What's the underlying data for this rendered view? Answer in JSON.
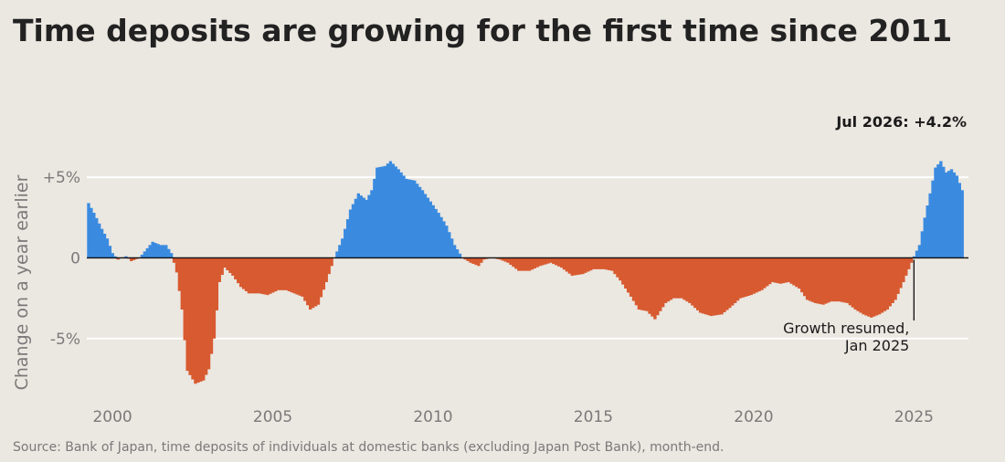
{
  "title": "Time deposits are growing for the first time since 2011",
  "source": "Source: Bank of Japan, time deposits of individuals at domestic banks (excluding Japan Post Bank), month-end.",
  "colors": {
    "background": "#ebe7e1",
    "positive": "#3a8be0",
    "negative": "#d85a30",
    "gridline": "#ffffff",
    "zero_line": "#111111"
  },
  "chart_data": {
    "type": "bar",
    "title": "Time deposits are growing for the first time since 2011",
    "ylabel": "Change on a year earlier",
    "ylim": [
      -9.2,
      7.5
    ],
    "xlim": [
      1999.2,
      2026.7
    ],
    "grid": "horizontal",
    "yticks": [
      {
        "value": 5,
        "label": "+5%"
      },
      {
        "value": 0,
        "label": "0"
      },
      {
        "value": -5,
        "label": "-5%"
      }
    ],
    "xticks": [
      {
        "value": 2000,
        "label": "2000"
      },
      {
        "value": 2005,
        "label": "2005"
      },
      {
        "value": 2010,
        "label": "2010"
      },
      {
        "value": 2015,
        "label": "2015"
      },
      {
        "value": 2020,
        "label": "2020"
      },
      {
        "value": 2025,
        "label": "2025"
      }
    ],
    "frequency": "monthly",
    "series_start": "1999-04",
    "series_end": "2026-07",
    "annotations": [
      {
        "date": "2026-07",
        "text": "Jul 2026: +4.2%"
      },
      {
        "date": "2025-01",
        "lines": [
          "Growth resumed,",
          "Jan 2025"
        ]
      }
    ],
    "anchors": [
      [
        "1999-04",
        3.4
      ],
      [
        "1999-06",
        2.8
      ],
      [
        "1999-09",
        1.8
      ],
      [
        "1999-11",
        1.2
      ],
      [
        "2000-01",
        0.3
      ],
      [
        "2000-03",
        -0.1
      ],
      [
        "2000-06",
        0.1
      ],
      [
        "2000-08",
        -0.2
      ],
      [
        "2000-11",
        0.0
      ],
      [
        "2001-02",
        0.6
      ],
      [
        "2001-04",
        1.0
      ],
      [
        "2001-07",
        0.8
      ],
      [
        "2001-09",
        0.8
      ],
      [
        "2001-11",
        0.3
      ],
      [
        "2002-01",
        -0.9
      ],
      [
        "2002-03",
        -3.2
      ],
      [
        "2002-05",
        -7.0
      ],
      [
        "2002-08",
        -7.8
      ],
      [
        "2002-11",
        -7.6
      ],
      [
        "2003-01",
        -6.9
      ],
      [
        "2003-03",
        -5.0
      ],
      [
        "2003-05",
        -1.5
      ],
      [
        "2003-07",
        -0.6
      ],
      [
        "2003-10",
        -1.1
      ],
      [
        "2004-01",
        -1.8
      ],
      [
        "2004-04",
        -2.2
      ],
      [
        "2004-08",
        -2.2
      ],
      [
        "2004-11",
        -2.3
      ],
      [
        "2005-03",
        -2.0
      ],
      [
        "2005-06",
        -2.0
      ],
      [
        "2005-09",
        -2.2
      ],
      [
        "2005-12",
        -2.4
      ],
      [
        "2006-03",
        -3.2
      ],
      [
        "2006-06",
        -2.9
      ],
      [
        "2006-09",
        -1.5
      ],
      [
        "2006-12",
        0.0
      ],
      [
        "2007-03",
        1.2
      ],
      [
        "2007-06",
        3.0
      ],
      [
        "2007-09",
        4.0
      ],
      [
        "2007-12",
        3.6
      ],
      [
        "2008-02",
        4.2
      ],
      [
        "2008-04",
        5.6
      ],
      [
        "2008-07",
        5.7
      ],
      [
        "2008-09",
        6.0
      ],
      [
        "2008-12",
        5.5
      ],
      [
        "2009-03",
        4.9
      ],
      [
        "2009-06",
        4.8
      ],
      [
        "2009-09",
        4.2
      ],
      [
        "2009-12",
        3.5
      ],
      [
        "2010-03",
        2.8
      ],
      [
        "2010-06",
        2.0
      ],
      [
        "2010-09",
        0.8
      ],
      [
        "2010-12",
        0.0
      ],
      [
        "2011-03",
        -0.3
      ],
      [
        "2011-06",
        -0.5
      ],
      [
        "2011-08",
        -0.1
      ],
      [
        "2011-11",
        0.0
      ],
      [
        "2012-02",
        -0.1
      ],
      [
        "2012-05",
        -0.3
      ],
      [
        "2012-09",
        -0.8
      ],
      [
        "2013-01",
        -0.8
      ],
      [
        "2013-05",
        -0.5
      ],
      [
        "2013-09",
        -0.3
      ],
      [
        "2014-01",
        -0.6
      ],
      [
        "2014-05",
        -1.1
      ],
      [
        "2014-09",
        -1.0
      ],
      [
        "2015-01",
        -0.7
      ],
      [
        "2015-05",
        -0.7
      ],
      [
        "2015-08",
        -0.8
      ],
      [
        "2015-11",
        -1.4
      ],
      [
        "2016-03",
        -2.4
      ],
      [
        "2016-06",
        -3.2
      ],
      [
        "2016-09",
        -3.3
      ],
      [
        "2016-12",
        -3.8
      ],
      [
        "2017-04",
        -2.8
      ],
      [
        "2017-07",
        -2.5
      ],
      [
        "2017-10",
        -2.5
      ],
      [
        "2018-01",
        -2.8
      ],
      [
        "2018-05",
        -3.4
      ],
      [
        "2018-09",
        -3.6
      ],
      [
        "2019-01",
        -3.5
      ],
      [
        "2019-04",
        -3.1
      ],
      [
        "2019-08",
        -2.5
      ],
      [
        "2019-12",
        -2.3
      ],
      [
        "2020-04",
        -2.0
      ],
      [
        "2020-08",
        -1.5
      ],
      [
        "2020-11",
        -1.6
      ],
      [
        "2021-02",
        -1.5
      ],
      [
        "2021-06",
        -1.9
      ],
      [
        "2021-09",
        -2.6
      ],
      [
        "2021-12",
        -2.8
      ],
      [
        "2022-03",
        -2.9
      ],
      [
        "2022-06",
        -2.7
      ],
      [
        "2022-09",
        -2.7
      ],
      [
        "2022-12",
        -2.8
      ],
      [
        "2023-03",
        -3.2
      ],
      [
        "2023-06",
        -3.5
      ],
      [
        "2023-09",
        -3.7
      ],
      [
        "2023-12",
        -3.5
      ],
      [
        "2024-03",
        -3.2
      ],
      [
        "2024-06",
        -2.6
      ],
      [
        "2024-09",
        -1.5
      ],
      [
        "2024-12",
        -0.3
      ],
      [
        "2025-01",
        0.1
      ],
      [
        "2025-03",
        0.8
      ],
      [
        "2025-05",
        2.5
      ],
      [
        "2025-07",
        4.0
      ],
      [
        "2025-09",
        5.6
      ],
      [
        "2025-11",
        6.0
      ],
      [
        "2026-01",
        5.3
      ],
      [
        "2026-03",
        5.5
      ],
      [
        "2026-05",
        5.1
      ],
      [
        "2026-07",
        4.2
      ]
    ]
  }
}
